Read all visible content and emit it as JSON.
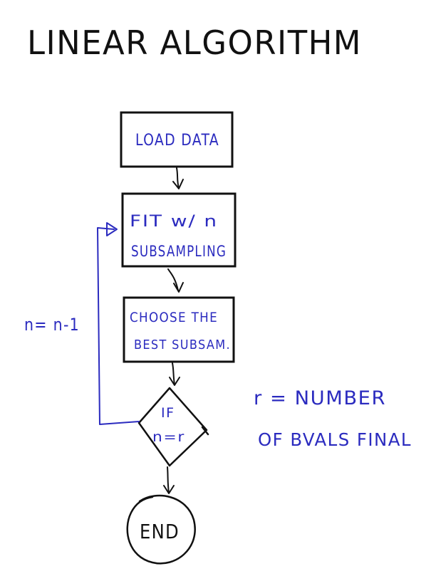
{
  "title": "LINEAR ALGORITHM",
  "nodes": {
    "load_data": "LOAD DATA",
    "fit_line1": "FIT w/ n",
    "fit_line2": "SUBSAMPLING",
    "choose_line1": "CHOOSE THE",
    "choose_line2": "BEST SUBSAM.",
    "decision_line1": "IF",
    "decision_line2": "n=r",
    "end": "END"
  },
  "loop_label": "n= n-1",
  "note": {
    "line1": "r = NUMBER",
    "line2": "OF BVALS FINAL"
  },
  "colors": {
    "black_ink": "#111111",
    "blue_ink": "#2b2bbf"
  }
}
